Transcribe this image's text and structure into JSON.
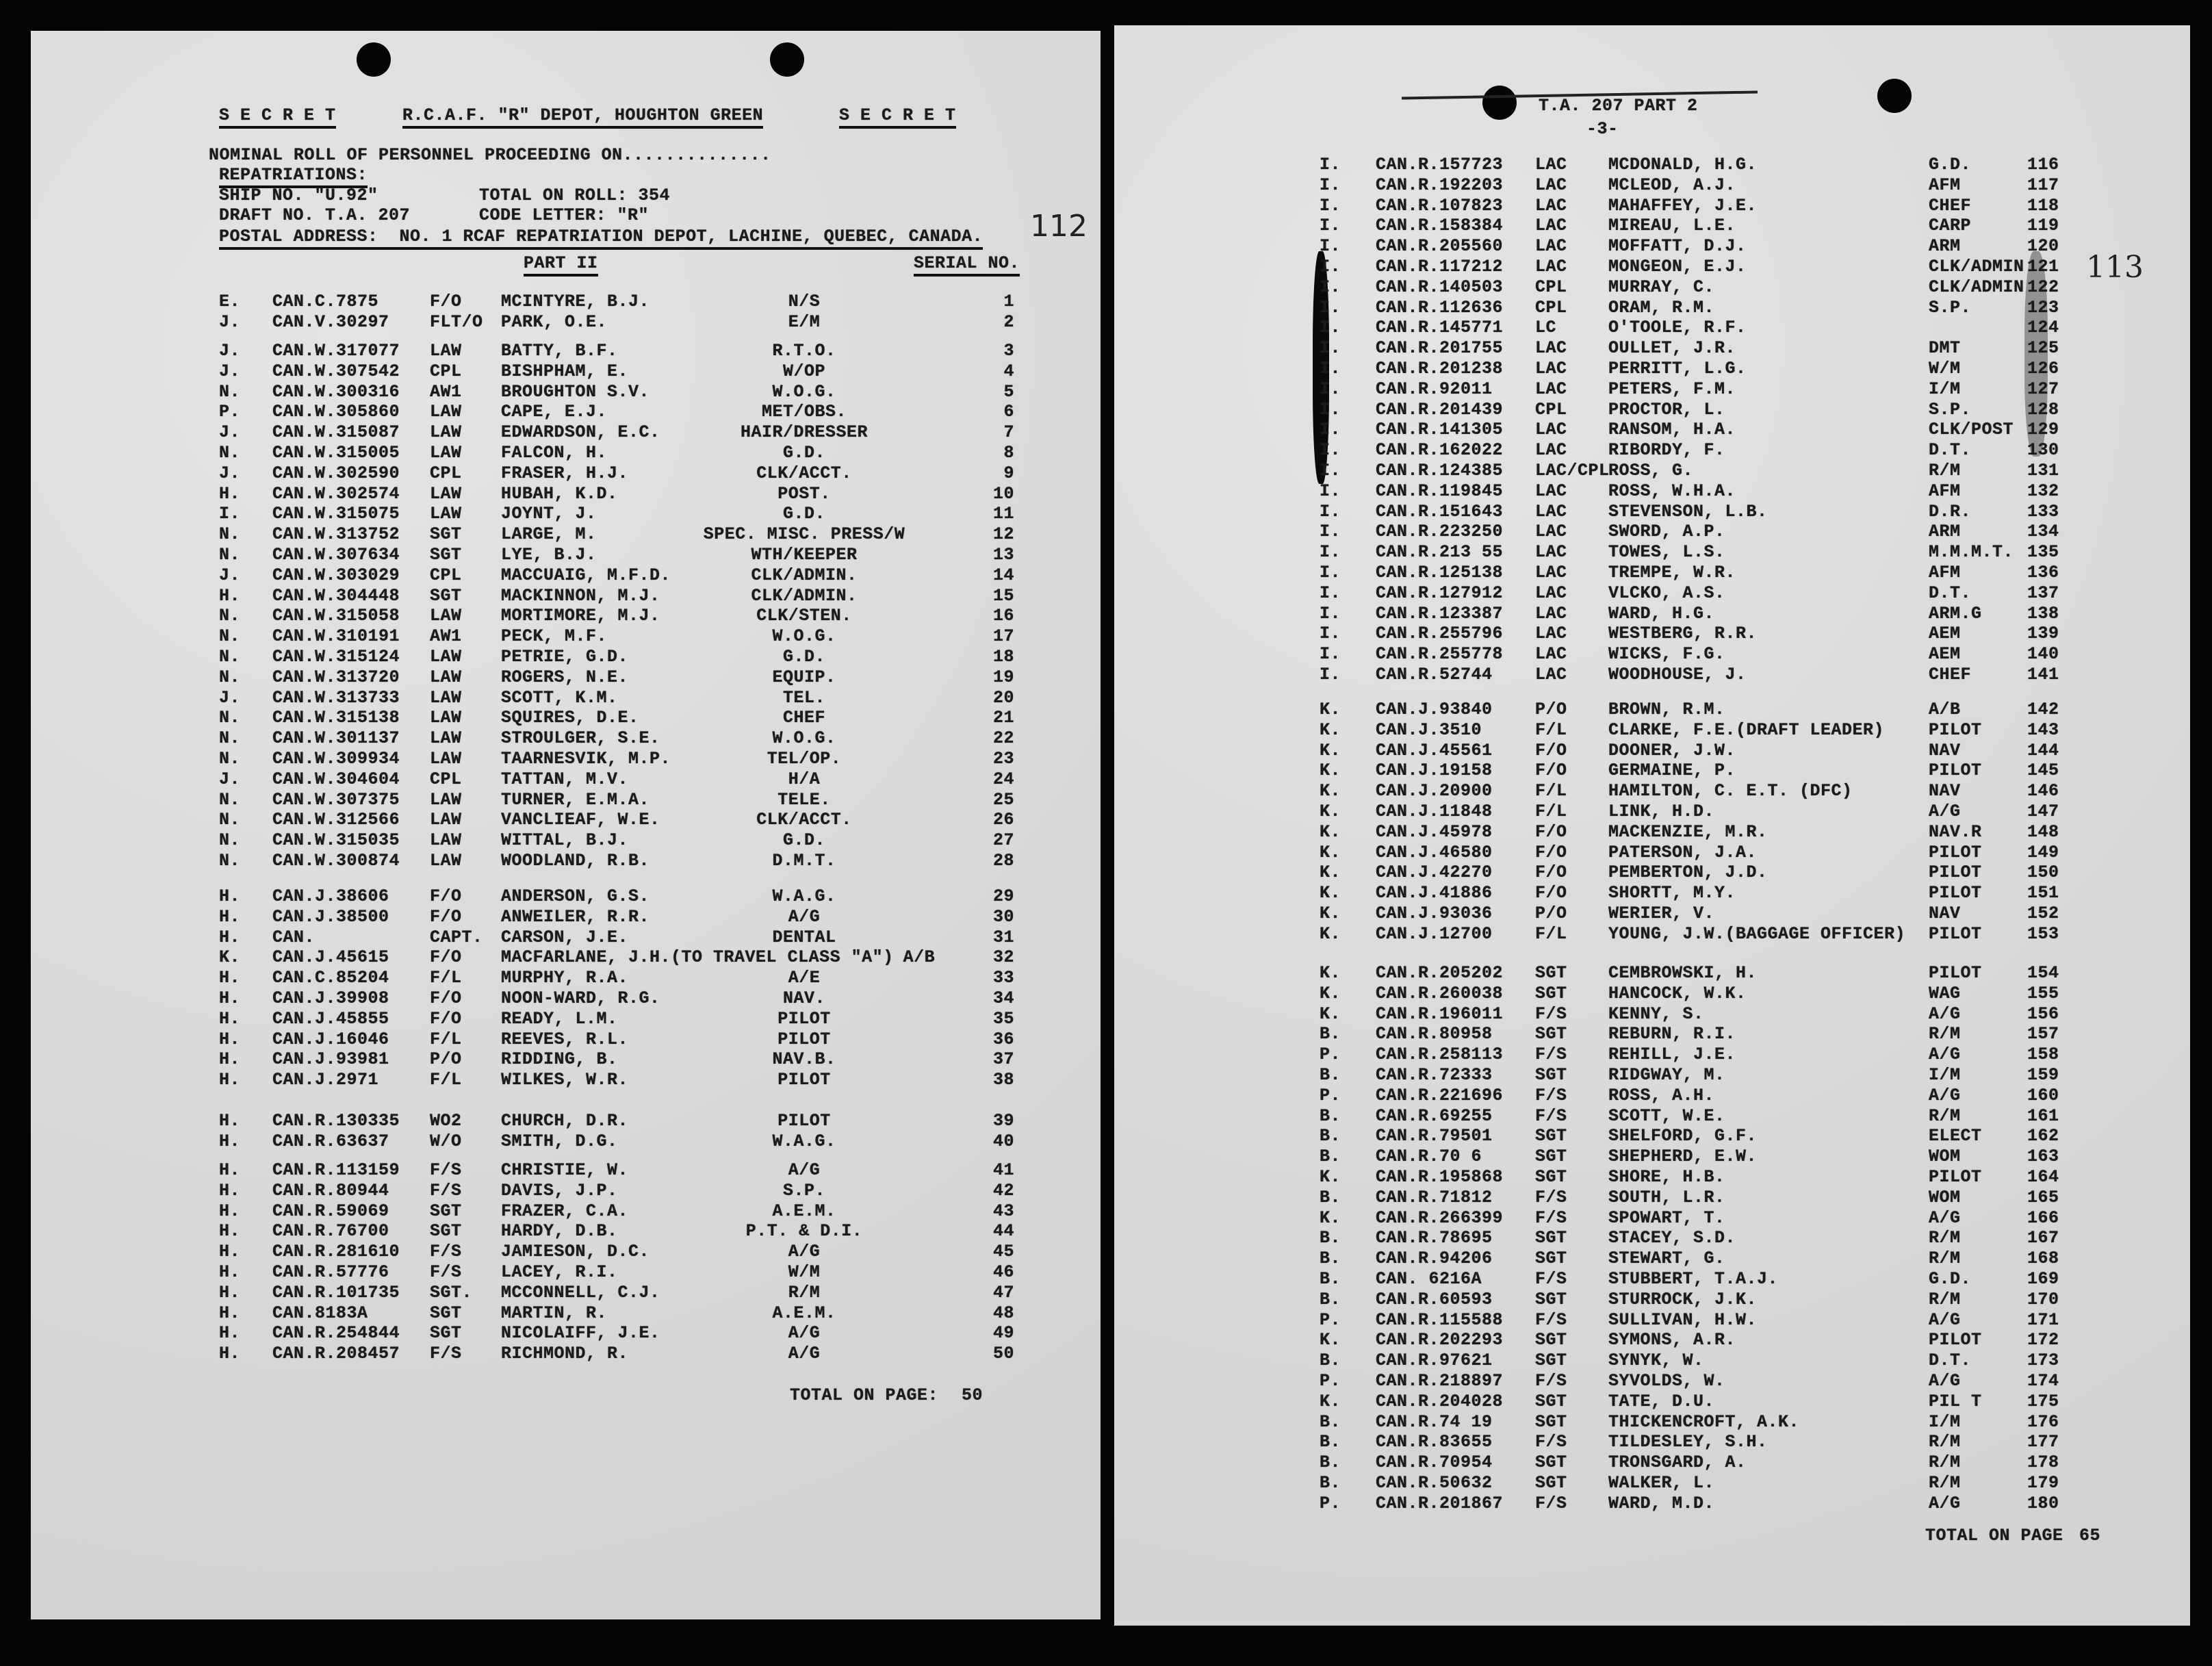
{
  "left_page": {
    "header": {
      "secret_left": "S E C R E T",
      "depot": "R.C.A.F. \"R\" DEPOT, HOUGHTON GREEN",
      "secret_right": "S E C R E T",
      "nominal_roll": "NOMINAL ROLL OF PERSONNEL PROCEEDING ON..............",
      "repatriations": "REPATRIATIONS:",
      "ship_no": "SHIP NO. \"U.92\"",
      "total_on_roll": "TOTAL ON ROLL: 354",
      "draft_no": "DRAFT NO. T.A. 207",
      "code_letter": "CODE LETTER: \"R\"",
      "postal_address": "POSTAL ADDRESS:  NO. 1 RCAF REPATRIATION DEPOT, LACHINE, QUEBEC, CANADA.",
      "page_stamp": "112",
      "part": "PART II",
      "serial_header": "SERIAL NO."
    },
    "groups": [
      [
        [
          "E.",
          "CAN.C.7875",
          "F/O",
          "MCINTYRE, B.J.",
          "N/S",
          "1"
        ],
        [
          "J.",
          "CAN.V.30297",
          "FLT/O",
          "PARK, O.E.",
          "E/M",
          "2"
        ]
      ],
      [
        [
          "J.",
          "CAN.W.317077",
          "LAW",
          "BATTY, B.F.",
          "R.T.O.",
          "3"
        ],
        [
          "J.",
          "CAN.W.307542",
          "CPL",
          "BISHPHAM, E.",
          "W/OP",
          "4"
        ],
        [
          "N.",
          "CAN.W.300316",
          "AW1",
          "BROUGHTON S.V.",
          "W.O.G.",
          "5"
        ],
        [
          "P.",
          "CAN.W.305860",
          "LAW",
          "CAPE, E.J.",
          "MET/OBS.",
          "6"
        ],
        [
          "J.",
          "CAN.W.315087",
          "LAW",
          "EDWARDSON, E.C.",
          "HAIR/DRESSER",
          "7"
        ],
        [
          "N.",
          "CAN.W.315005",
          "LAW",
          "FALCON, H.",
          "G.D.",
          "8"
        ],
        [
          "J.",
          "CAN.W.302590",
          "CPL",
          "FRASER, H.J.",
          "CLK/ACCT.",
          "9"
        ],
        [
          "H.",
          "CAN.W.302574",
          "LAW",
          "HUBAH, K.D.",
          "POST.",
          "10"
        ],
        [
          "I.",
          "CAN.W.315075",
          "LAW",
          "JOYNT, J.",
          "G.D.",
          "11"
        ],
        [
          "N.",
          "CAN.W.313752",
          "SGT",
          "LARGE, M.",
          "SPEC. MISC. PRESS/W",
          "12"
        ],
        [
          "N.",
          "CAN.W.307634",
          "SGT",
          "LYE, B.J.",
          "WTH/KEEPER",
          "13"
        ],
        [
          "J.",
          "CAN.W.303029",
          "CPL",
          "MACCUAIG, M.F.D.",
          "CLK/ADMIN.",
          "14"
        ],
        [
          "H.",
          "CAN.W.304448",
          "SGT",
          "MACKINNON, M.J.",
          "CLK/ADMIN.",
          "15"
        ],
        [
          "N.",
          "CAN.W.315058",
          "LAW",
          "MORTIMORE, M.J.",
          "CLK/STEN.",
          "16"
        ],
        [
          "N.",
          "CAN.W.310191",
          "AW1",
          "PECK, M.F.",
          "W.O.G.",
          "17"
        ],
        [
          "N.",
          "CAN.W.315124",
          "LAW",
          "PETRIE, G.D.",
          "G.D.",
          "18"
        ],
        [
          "N.",
          "CAN.W.313720",
          "LAW",
          "ROGERS, N.E.",
          "EQUIP.",
          "19"
        ],
        [
          "J.",
          "CAN.W.313733",
          "LAW",
          "SCOTT, K.M.",
          "TEL.",
          "20"
        ],
        [
          "N.",
          "CAN.W.315138",
          "LAW",
          "SQUIRES, D.E.",
          "CHEF",
          "21"
        ],
        [
          "N.",
          "CAN.W.301137",
          "LAW",
          "STROULGER, S.E.",
          "W.O.G.",
          "22"
        ],
        [
          "N.",
          "CAN.W.309934",
          "LAW",
          "TAARNESVIK, M.P.",
          "TEL/OP.",
          "23"
        ],
        [
          "J.",
          "CAN.W.304604",
          "CPL",
          "TATTAN, M.V.",
          "H/A",
          "24"
        ],
        [
          "N.",
          "CAN.W.307375",
          "LAW",
          "TURNER, E.M.A.",
          "TELE.",
          "25"
        ],
        [
          "N.",
          "CAN.W.312566",
          "LAW",
          "VANCLIEAF, W.E.",
          "CLK/ACCT.",
          "26"
        ],
        [
          "N.",
          "CAN.W.315035",
          "LAW",
          "WITTAL, B.J.",
          "G.D.",
          "27"
        ],
        [
          "N.",
          "CAN.W.300874",
          "LAW",
          "WOODLAND, R.B.",
          "D.M.T.",
          "28"
        ]
      ],
      [
        [
          "H.",
          "CAN.J.38606",
          "F/O",
          "ANDERSON, G.S.",
          "W.A.G.",
          "29"
        ],
        [
          "H.",
          "CAN.J.38500",
          "F/O",
          "ANWEILER, R.R.",
          "A/G",
          "30"
        ],
        [
          "H.",
          "CAN.",
          "CAPT.",
          "CARSON, J.E.",
          "DENTAL",
          "31"
        ],
        [
          "K.",
          "CAN.J.45615",
          "F/O",
          "MACFARLANE, J.H.(TO TRAVEL CLASS \"A\")",
          "A/B",
          "32"
        ],
        [
          "H.",
          "CAN.C.85204",
          "F/L",
          "MURPHY, R.A.",
          "A/E",
          "33"
        ],
        [
          "H.",
          "CAN.J.39908",
          "F/O",
          "NOON-WARD, R.G.",
          "NAV.",
          "34"
        ],
        [
          "H.",
          "CAN.J.45855",
          "F/O",
          "READY, L.M.",
          "PILOT",
          "35"
        ],
        [
          "H.",
          "CAN.J.16046",
          "F/L",
          "REEVES, R.L.",
          "PILOT",
          "36"
        ],
        [
          "H.",
          "CAN.J.93981",
          "P/O",
          "RIDDING, B.",
          "NAV.B.",
          "37"
        ],
        [
          "H.",
          "CAN.J.2971",
          "F/L",
          "WILKES, W.R.",
          "PILOT",
          "38"
        ]
      ],
      [
        [
          "H.",
          "CAN.R.130335",
          "WO2",
          "CHURCH, D.R.",
          "PILOT",
          "39"
        ],
        [
          "H.",
          "CAN.R.63637",
          "W/O",
          "SMITH, D.G.",
          "W.A.G.",
          "40"
        ]
      ],
      [
        [
          "H.",
          "CAN.R.113159",
          "F/S",
          "CHRISTIE, W.",
          "A/G",
          "41"
        ],
        [
          "H.",
          "CAN.R.80944",
          "F/S",
          "DAVIS, J.P.",
          "S.P.",
          "42"
        ],
        [
          "H.",
          "CAN.R.59069",
          "SGT",
          "FRAZER, C.A.",
          "A.E.M.",
          "43"
        ],
        [
          "H.",
          "CAN.R.76700",
          "SGT",
          "HARDY, D.B.",
          "P.T. & D.I.",
          "44"
        ],
        [
          "H.",
          "CAN.R.281610",
          "F/S",
          "JAMIESON, D.C.",
          "A/G",
          "45"
        ],
        [
          "H.",
          "CAN.R.57776",
          "F/S",
          "LACEY, R.I.",
          "W/M",
          "46"
        ],
        [
          "H.",
          "CAN.R.101735",
          "SGT.",
          "MCCONNELL, C.J.",
          "R/M",
          "47"
        ],
        [
          "H.",
          "CAN.8183A",
          "SGT",
          "MARTIN, R.",
          "A.E.M.",
          "48"
        ],
        [
          "H.",
          "CAN.R.254844",
          "SGT",
          "NICOLAIFF, J.E.",
          "A/G",
          "49"
        ],
        [
          "H.",
          "CAN.R.208457",
          "F/S",
          "RICHMOND, R.",
          "A/G",
          "50"
        ]
      ]
    ],
    "total_label": "TOTAL ON PAGE:",
    "total_value": "50"
  },
  "right_page": {
    "header": {
      "title": "T.A. 207 PART 2",
      "page_no": "-3-",
      "page_stamp": "113"
    },
    "groups": [
      [
        [
          "I.",
          "CAN.R.157723",
          "LAC",
          "MCDONALD, H.G.",
          "G.D.",
          "116"
        ],
        [
          "I.",
          "CAN.R.192203",
          "LAC",
          "MCLEOD, A.J.",
          "AFM",
          "117"
        ],
        [
          "I.",
          "CAN.R.107823",
          "LAC",
          "MAHAFFEY, J.E.",
          "CHEF",
          "118"
        ],
        [
          "I.",
          "CAN.R.158384",
          "LAC",
          "MIREAU, L.E.",
          "CARP",
          "119"
        ],
        [
          "I.",
          "CAN.R.205560",
          "LAC",
          "MOFFATT, D.J.",
          "ARM",
          "120"
        ],
        [
          "I.",
          "CAN.R.117212",
          "LAC",
          "MONGEON, E.J.",
          "CLK/ADMIN",
          "121"
        ],
        [
          "I.",
          "CAN.R.140503",
          "CPL",
          "MURRAY, C.",
          "CLK/ADMIN",
          "122"
        ],
        [
          "I.",
          "CAN.R.112636",
          "CPL",
          "ORAM, R.M.",
          "S.P.",
          "123"
        ],
        [
          "I.",
          "CAN.R.145771",
          "LC",
          "O'TOOLE, R.F.",
          "",
          "124"
        ],
        [
          "I.",
          "CAN.R.201755",
          "LAC",
          "OULLET, J.R.",
          "DMT",
          "125"
        ],
        [
          "I.",
          "CAN.R.201238",
          "LAC",
          "PERRITT, L.G.",
          "W/M",
          "126"
        ],
        [
          "I.",
          "CAN.R.92011",
          "LAC",
          "PETERS, F.M.",
          "I/M",
          "127"
        ],
        [
          "I.",
          "CAN.R.201439",
          "CPL",
          "PROCTOR, L.",
          "S.P.",
          "128"
        ],
        [
          "I.",
          "CAN.R.141305",
          "LAC",
          "RANSOM, H.A.",
          "CLK/POST",
          "129"
        ],
        [
          "I.",
          "CAN.R.162022",
          "LAC",
          "RIBORDY, F.",
          "D.T.",
          "130"
        ],
        [
          "I.",
          "CAN.R.124385",
          "LAC/CPL",
          "ROSS, G.",
          "R/M",
          "131"
        ],
        [
          "I.",
          "CAN.R.119845",
          "LAC",
          "ROSS, W.H.A.",
          "AFM",
          "132"
        ],
        [
          "I.",
          "CAN.R.151643",
          "LAC",
          "STEVENSON, L.B.",
          "D.R.",
          "133"
        ],
        [
          "I.",
          "CAN.R.223250",
          "LAC",
          "SWORD, A.P.",
          "ARM",
          "134"
        ],
        [
          "I.",
          "CAN.R.213 55",
          "LAC",
          "TOWES, L.S.",
          "M.M.M.T.",
          "135"
        ],
        [
          "I.",
          "CAN.R.125138",
          "LAC",
          "TREMPE, W.R.",
          "AFM",
          "136"
        ],
        [
          "I.",
          "CAN.R.127912",
          "LAC",
          "VLCKO, A.S.",
          "D.T.",
          "137"
        ],
        [
          "I.",
          "CAN.R.123387",
          "LAC",
          "WARD, H.G.",
          "ARM.G",
          "138"
        ],
        [
          "I.",
          "CAN.R.255796",
          "LAC",
          "WESTBERG, R.R.",
          "AEM",
          "139"
        ],
        [
          "I.",
          "CAN.R.255778",
          "LAC",
          "WICKS, F.G.",
          "AEM",
          "140"
        ],
        [
          "I.",
          "CAN.R.52744",
          "LAC",
          "WOODHOUSE, J.",
          "CHEF",
          "141"
        ]
      ],
      [
        [
          "K.",
          "CAN.J.93840",
          "P/O",
          "BROWN, R.M.",
          "A/B",
          "142"
        ],
        [
          "K.",
          "CAN.J.3510",
          "F/L",
          "CLARKE, F.E.(DRAFT LEADER)",
          "PILOT",
          "143"
        ],
        [
          "K.",
          "CAN.J.45561",
          "F/O",
          "DOONER, J.W.",
          "NAV",
          "144"
        ],
        [
          "K.",
          "CAN.J.19158",
          "F/O",
          "GERMAINE, P.",
          "PILOT",
          "145"
        ],
        [
          "K.",
          "CAN.J.20900",
          "F/L",
          "HAMILTON, C. E.T. (DFC)",
          "NAV",
          "146"
        ],
        [
          "K.",
          "CAN.J.11848",
          "F/L",
          "LINK, H.D.",
          "A/G",
          "147"
        ],
        [
          "K.",
          "CAN.J.45978",
          "F/O",
          "MACKENZIE, M.R.",
          "NAV.R",
          "148"
        ],
        [
          "K.",
          "CAN.J.46580",
          "F/O",
          "PATERSON, J.A.",
          "PILOT",
          "149"
        ],
        [
          "K.",
          "CAN.J.42270",
          "F/O",
          "PEMBERTON, J.D.",
          "PILOT",
          "150"
        ],
        [
          "K.",
          "CAN.J.41886",
          "F/O",
          "SHORTT, M.Y.",
          "PILOT",
          "151"
        ],
        [
          "K.",
          "CAN.J.93036",
          "P/O",
          "WERIER, V.",
          "NAV",
          "152"
        ],
        [
          "K.",
          "CAN.J.12700",
          "F/L",
          "YOUNG, J.W.(BAGGAGE OFFICER)",
          "PILOT",
          "153"
        ]
      ],
      [
        [
          "K.",
          "CAN.R.205202",
          "SGT",
          "CEMBROWSKI, H.",
          "PILOT",
          "154"
        ],
        [
          "K.",
          "CAN.R.260038",
          "SGT",
          "HANCOCK, W.K.",
          "WAG",
          "155"
        ],
        [
          "K.",
          "CAN.R.196011",
          "F/S",
          "KENNY, S.",
          "A/G",
          "156"
        ],
        [
          "B.",
          "CAN.R.80958",
          "SGT",
          "REBURN, R.I.",
          "R/M",
          "157"
        ],
        [
          "P.",
          "CAN.R.258113",
          "F/S",
          "REHILL, J.E.",
          "A/G",
          "158"
        ],
        [
          "B.",
          "CAN.R.72333",
          "SGT",
          "RIDGWAY, M.",
          "I/M",
          "159"
        ],
        [
          "P.",
          "CAN.R.221696",
          "F/S",
          "ROSS, A.H.",
          "A/G",
          "160"
        ],
        [
          "B.",
          "CAN.R.69255",
          "F/S",
          "SCOTT, W.E.",
          "R/M",
          "161"
        ],
        [
          "B.",
          "CAN.R.79501",
          "SGT",
          "SHELFORD, G.F.",
          "ELECT",
          "162"
        ],
        [
          "B.",
          "CAN.R.70 6",
          "SGT",
          "SHEPHERD, E.W.",
          "WOM",
          "163"
        ],
        [
          "K.",
          "CAN.R.195868",
          "SGT",
          "SHORE, H.B.",
          "PILOT",
          "164"
        ],
        [
          "B.",
          "CAN.R.71812",
          "F/S",
          "SOUTH, L.R.",
          "WOM",
          "165"
        ],
        [
          "K.",
          "CAN.R.266399",
          "F/S",
          "SPOWART, T.",
          "A/G",
          "166"
        ],
        [
          "B.",
          "CAN.R.78695",
          "SGT",
          "STACEY, S.D.",
          "R/M",
          "167"
        ],
        [
          "B.",
          "CAN.R.94206",
          "SGT",
          "STEWART, G.",
          "R/M",
          "168"
        ],
        [
          "B.",
          "CAN. 6216A",
          "F/S",
          "STUBBERT, T.A.J.",
          "G.D.",
          "169"
        ],
        [
          "B.",
          "CAN.R.60593",
          "SGT",
          "STURROCK, J.K.",
          "R/M",
          "170"
        ],
        [
          "P.",
          "CAN.R.115588",
          "F/S",
          "SULLIVAN, H.W.",
          "A/G",
          "171"
        ],
        [
          "K.",
          "CAN.R.202293",
          "SGT",
          "SYMONS, A.R.",
          "PILOT",
          "172"
        ],
        [
          "B.",
          "CAN.R.97621",
          "SGT",
          "SYNYK, W.",
          "D.T.",
          "173"
        ],
        [
          "P.",
          "CAN.R.218897",
          "F/S",
          "SYVOLDS, W.",
          "A/G",
          "174"
        ],
        [
          "K.",
          "CAN.R.204028",
          "SGT",
          "TATE, D.U.",
          "PIL T",
          "175"
        ],
        [
          "B.",
          "CAN.R.74 19",
          "SGT",
          "THICKENCROFT, A.K.",
          "I/M",
          "176"
        ],
        [
          "B.",
          "CAN.R.83655",
          "F/S",
          "TILDESLEY, S.H.",
          "R/M",
          "177"
        ],
        [
          "B.",
          "CAN.R.70954",
          "SGT",
          "TRONSGARD, A.",
          "R/M",
          "178"
        ],
        [
          "B.",
          "CAN.R.50632",
          "SGT",
          "WALKER, L.",
          "R/M",
          "179"
        ],
        [
          "P.",
          "CAN.R.201867",
          "F/S",
          "WARD, M.D.",
          "A/G",
          "180"
        ]
      ]
    ],
    "total_label": "TOTAL ON PAGE",
    "total_value": "65"
  }
}
